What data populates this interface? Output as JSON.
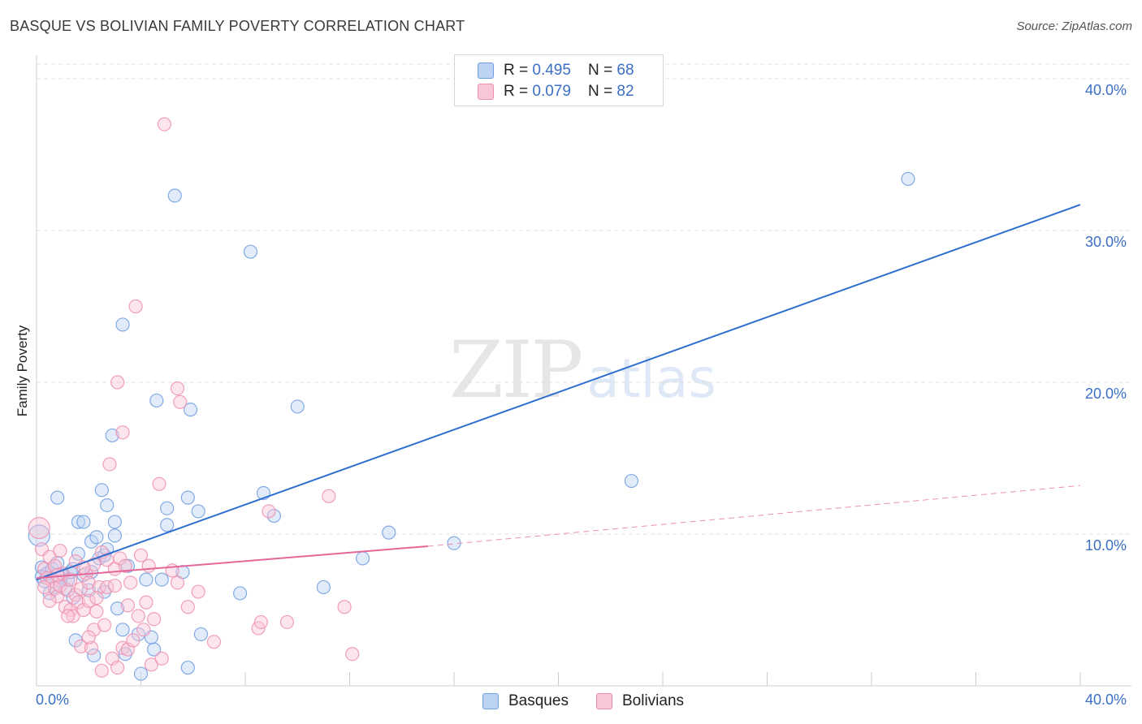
{
  "title": "BASQUE VS BOLIVIAN FAMILY POVERTY CORRELATION CHART",
  "source": "Source: ZipAtlas.com",
  "watermark": {
    "zip": "ZIP",
    "atlas": "atlas"
  },
  "legend_top": {
    "rows": [
      {
        "r_label": "R = ",
        "r_value": "0.495",
        "n_label": "N = ",
        "n_value": "68",
        "color": "#6f9ee0"
      },
      {
        "r_label": "R = ",
        "r_value": "0.079",
        "n_label": "N = ",
        "n_value": "82",
        "color": "#ee8fae"
      }
    ]
  },
  "legend_bottom": {
    "items": [
      {
        "label": "Basques"
      },
      {
        "label": "Bolivians"
      }
    ]
  },
  "chart_data": {
    "type": "scatter",
    "title": "BASQUE VS BOLIVIAN FAMILY POVERTY CORRELATION CHART",
    "xlabel": "",
    "ylabel": "Family Poverty",
    "xlim": [
      0,
      40
    ],
    "ylim": [
      0,
      40
    ],
    "x_tick_labels": [
      "0.0%",
      "40.0%"
    ],
    "y_tick_labels": [
      "10.0%",
      "20.0%",
      "30.0%",
      "40.0%"
    ],
    "y_ticks": [
      10,
      20,
      30,
      40
    ],
    "grid": true,
    "legend_position": "top-center",
    "series": [
      {
        "name": "Basques",
        "color": "#6f9ee0",
        "fill": "#bcd3f3",
        "trend": {
          "x0": 0,
          "y0": 7.0,
          "x1": 40,
          "y1": 31.7
        },
        "points": [
          [
            0.1,
            9.9
          ],
          [
            0.2,
            7.8
          ],
          [
            0.2,
            7.2
          ],
          [
            0.3,
            6.9
          ],
          [
            0.4,
            7.4
          ],
          [
            0.5,
            6.1
          ],
          [
            0.6,
            7.7
          ],
          [
            0.7,
            6.5
          ],
          [
            0.8,
            8.1
          ],
          [
            0.8,
            12.4
          ],
          [
            1.0,
            7.3
          ],
          [
            1.1,
            6.4
          ],
          [
            1.2,
            7.0
          ],
          [
            1.3,
            7.5
          ],
          [
            1.4,
            5.8
          ],
          [
            1.5,
            3.0
          ],
          [
            1.6,
            8.7
          ],
          [
            1.6,
            10.8
          ],
          [
            1.8,
            10.8
          ],
          [
            1.8,
            7.3
          ],
          [
            2.0,
            6.3
          ],
          [
            2.1,
            9.5
          ],
          [
            2.1,
            7.5
          ],
          [
            2.2,
            2.0
          ],
          [
            2.3,
            9.8
          ],
          [
            2.4,
            8.4
          ],
          [
            2.5,
            12.9
          ],
          [
            2.6,
            8.6
          ],
          [
            2.7,
            11.9
          ],
          [
            2.7,
            9.0
          ],
          [
            2.9,
            16.5
          ],
          [
            3.0,
            9.9
          ],
          [
            3.0,
            10.8
          ],
          [
            3.1,
            5.1
          ],
          [
            3.3,
            23.8
          ],
          [
            3.3,
            3.7
          ],
          [
            3.4,
            2.1
          ],
          [
            3.9,
            3.4
          ],
          [
            4.0,
            0.8
          ],
          [
            4.2,
            7.0
          ],
          [
            4.5,
            2.4
          ],
          [
            4.6,
            18.8
          ],
          [
            4.8,
            7.0
          ],
          [
            5.0,
            11.7
          ],
          [
            5.0,
            10.6
          ],
          [
            5.3,
            32.3
          ],
          [
            5.6,
            7.5
          ],
          [
            5.8,
            1.2
          ],
          [
            5.8,
            12.4
          ],
          [
            5.9,
            18.2
          ],
          [
            6.2,
            11.5
          ],
          [
            6.3,
            3.4
          ],
          [
            7.8,
            6.1
          ],
          [
            8.2,
            28.6
          ],
          [
            8.7,
            12.7
          ],
          [
            9.1,
            11.2
          ],
          [
            10.0,
            18.4
          ],
          [
            11.0,
            6.5
          ],
          [
            12.5,
            8.4
          ],
          [
            13.5,
            10.1
          ],
          [
            16.0,
            9.4
          ],
          [
            22.8,
            13.5
          ],
          [
            33.4,
            33.4
          ],
          [
            1.4,
            7.7
          ],
          [
            2.6,
            6.2
          ],
          [
            4.4,
            3.2
          ],
          [
            0.9,
            6.9
          ],
          [
            3.5,
            7.9
          ]
        ]
      },
      {
        "name": "Bolivians",
        "color": "#ee8fae",
        "fill": "#f8c6d6",
        "trend": {
          "x0": 0,
          "y0": 7.1,
          "x1": 15.0,
          "y1": 9.2
        },
        "trend_dashed": {
          "x0": 15.0,
          "y0": 9.2,
          "x1": 40,
          "y1": 13.2
        },
        "points": [
          [
            0.1,
            10.4
          ],
          [
            0.2,
            9.0
          ],
          [
            0.3,
            7.7
          ],
          [
            0.4,
            7.1
          ],
          [
            0.5,
            8.5
          ],
          [
            0.6,
            6.9
          ],
          [
            0.7,
            7.9
          ],
          [
            0.7,
            6.4
          ],
          [
            0.8,
            5.9
          ],
          [
            0.9,
            6.6
          ],
          [
            0.9,
            8.9
          ],
          [
            1.0,
            7.4
          ],
          [
            1.1,
            5.2
          ],
          [
            1.2,
            6.3
          ],
          [
            1.3,
            5.0
          ],
          [
            1.3,
            7.0
          ],
          [
            1.4,
            4.6
          ],
          [
            1.5,
            8.2
          ],
          [
            1.5,
            6.0
          ],
          [
            1.6,
            5.5
          ],
          [
            1.7,
            2.6
          ],
          [
            1.7,
            6.4
          ],
          [
            1.8,
            5.0
          ],
          [
            1.9,
            7.4
          ],
          [
            2.0,
            6.8
          ],
          [
            2.0,
            5.6
          ],
          [
            2.1,
            2.5
          ],
          [
            2.2,
            8.0
          ],
          [
            2.2,
            3.7
          ],
          [
            2.3,
            4.9
          ],
          [
            2.4,
            6.5
          ],
          [
            2.5,
            8.8
          ],
          [
            2.5,
            1.0
          ],
          [
            2.6,
            4.0
          ],
          [
            2.7,
            8.3
          ],
          [
            2.7,
            6.5
          ],
          [
            2.8,
            14.6
          ],
          [
            2.9,
            1.8
          ],
          [
            3.0,
            7.7
          ],
          [
            3.1,
            1.2
          ],
          [
            3.1,
            20.0
          ],
          [
            3.2,
            8.4
          ],
          [
            3.3,
            2.5
          ],
          [
            3.3,
            16.7
          ],
          [
            3.4,
            7.9
          ],
          [
            3.5,
            2.4
          ],
          [
            3.5,
            5.3
          ],
          [
            3.6,
            6.8
          ],
          [
            3.8,
            25.0
          ],
          [
            3.9,
            4.6
          ],
          [
            4.0,
            8.6
          ],
          [
            4.1,
            3.7
          ],
          [
            4.3,
            7.9
          ],
          [
            4.4,
            1.4
          ],
          [
            4.5,
            4.4
          ],
          [
            4.7,
            13.3
          ],
          [
            4.8,
            1.8
          ],
          [
            4.9,
            37.0
          ],
          [
            5.2,
            7.6
          ],
          [
            5.4,
            6.8
          ],
          [
            5.4,
            19.6
          ],
          [
            5.5,
            18.7
          ],
          [
            5.8,
            5.2
          ],
          [
            6.2,
            6.2
          ],
          [
            6.8,
            2.9
          ],
          [
            8.5,
            3.8
          ],
          [
            8.6,
            4.2
          ],
          [
            8.9,
            11.5
          ],
          [
            9.6,
            4.2
          ],
          [
            11.2,
            12.5
          ],
          [
            11.8,
            5.2
          ],
          [
            12.1,
            2.1
          ],
          [
            0.3,
            6.5
          ],
          [
            1.2,
            4.6
          ],
          [
            2.3,
            5.8
          ],
          [
            3.0,
            6.6
          ],
          [
            1.8,
            7.8
          ],
          [
            4.2,
            5.5
          ],
          [
            0.5,
            5.6
          ],
          [
            2.0,
            3.2
          ],
          [
            3.7,
            3.0
          ],
          [
            0.8,
            7.3
          ]
        ]
      }
    ]
  }
}
